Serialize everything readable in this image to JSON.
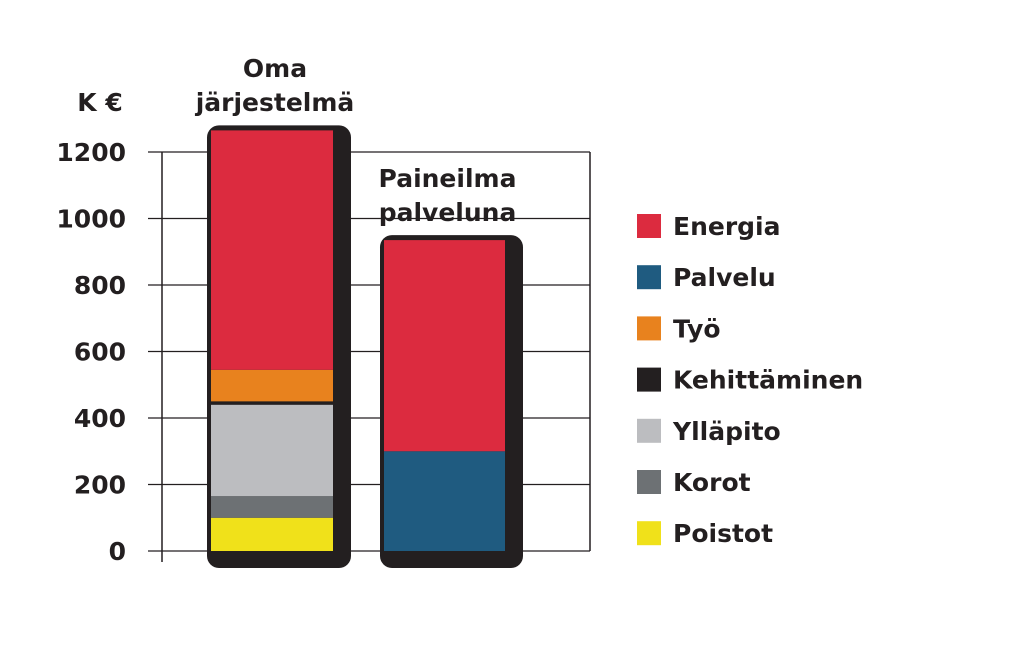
{
  "chart_data": {
    "type": "stacked_bar",
    "y_label": "K €",
    "categories": [
      "Oma järjestelmä",
      "Paineilma palveluna"
    ],
    "series": [
      {
        "name": "Energia",
        "color": "#dc2b3f",
        "values": [
          720,
          635
        ]
      },
      {
        "name": "Palvelu",
        "color": "#1f5b80",
        "values": [
          0,
          300
        ]
      },
      {
        "name": "Työ",
        "color": "#e8821e",
        "values": [
          95,
          0
        ]
      },
      {
        "name": "Kehittäminen",
        "color": "#231f20",
        "values": [
          10,
          0
        ]
      },
      {
        "name": "Ylläpito",
        "color": "#bcbdc0",
        "values": [
          275,
          0
        ]
      },
      {
        "name": "Korot",
        "color": "#6d7174",
        "values": [
          65,
          0
        ]
      },
      {
        "name": "Poistot",
        "color": "#f0e11a",
        "values": [
          100,
          0
        ]
      }
    ],
    "ylim": [
      0,
      1200
    ],
    "yticks": [
      0,
      200,
      400,
      600,
      800,
      1000,
      1200
    ],
    "grid": true
  }
}
